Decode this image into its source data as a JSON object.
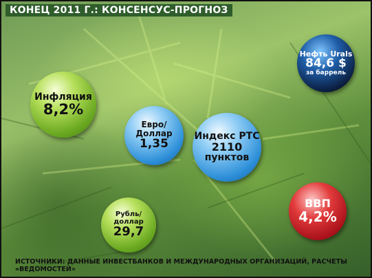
{
  "header": {
    "title": "КОНЕЦ 2011 Г.: КОНСЕНСУС-ПРОГНОЗ"
  },
  "bubbles": [
    {
      "label": "Нефть Urals",
      "value": "84,6 $",
      "unit": "за баррель"
    },
    {
      "label": "Инфляция",
      "value": "8,2%"
    },
    {
      "label": "Евро/Доллар",
      "value": "1,35"
    },
    {
      "label": "Индекс РТС",
      "value": "2110",
      "unit": "пунктов"
    },
    {
      "label": "Рубль/доллар",
      "value": "29,7"
    },
    {
      "label": "ВВП",
      "value": "4,2%"
    }
  ],
  "footer": {
    "source": "ИСТОЧНИКИ: ДАННЫЕ ИНВЕСТБАНКОВ И МЕЖДУНАРОДНЫХ ОРГАНИЗАЦИЙ, РАСЧЕТЫ «ВЕДОМОСТЕЙ»"
  }
}
